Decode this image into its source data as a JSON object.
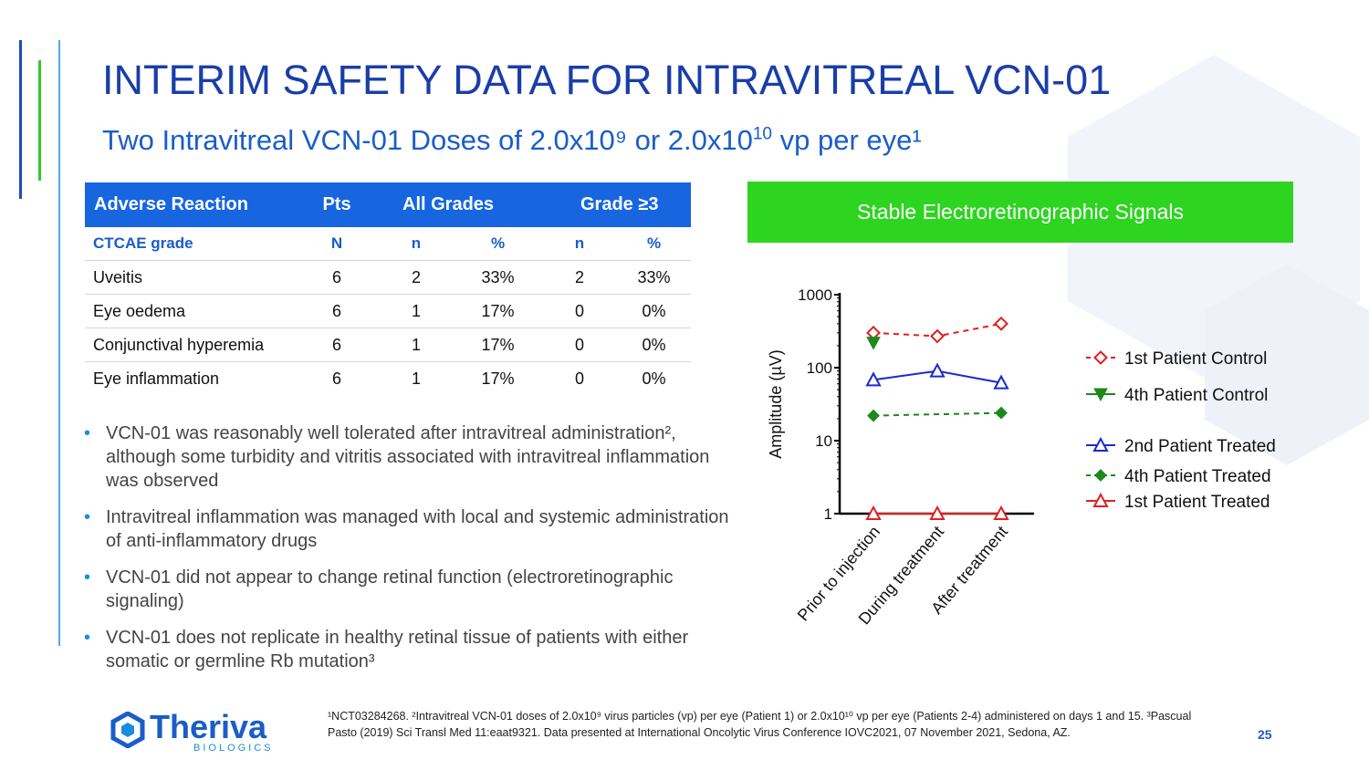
{
  "title": "INTERIM SAFETY DATA FOR INTRAVITREAL VCN-01",
  "subtitle": {
    "prefix": "Two Intravitreal VCN-01 Doses of 2.0x10",
    "exp1": "⁹",
    "middle": " or 2.0x10",
    "exp2": "10",
    "suffix": " vp per eye¹"
  },
  "table": {
    "headers": [
      "Adverse Reaction",
      "Pts",
      "All Grades",
      "Grade ≥3"
    ],
    "subheader": [
      "CTCAE grade",
      "N",
      "n",
      "%",
      "n",
      "%"
    ],
    "rows": [
      [
        "Uveitis",
        "6",
        "2",
        "33%",
        "2",
        "33%"
      ],
      [
        "Eye oedema",
        "6",
        "1",
        "17%",
        "0",
        "0%"
      ],
      [
        "Conjunctival hyperemia",
        "6",
        "1",
        "17%",
        "0",
        "0%"
      ],
      [
        "Eye inflammation",
        "6",
        "1",
        "17%",
        "0",
        "0%"
      ]
    ]
  },
  "bullets": [
    "VCN-01 was reasonably well tolerated after intravitreal administration², although some turbidity and vitritis associated with intravitreal inflammation was observed",
    "Intravitreal inflammation was managed with local and systemic administration of anti-inflammatory drugs",
    "VCN-01 did not appear to change retinal function (electroretinographic signaling)",
    "VCN-01 does not replicate in healthy retinal tissue of patients with either somatic or germline Rb mutation³"
  ],
  "banner": "Stable Electroretinographic Signals",
  "chart_data": {
    "type": "line",
    "categories": [
      "Prior to injection",
      "During treatment",
      "After treatment"
    ],
    "ylabel": "Amplitude (µV)",
    "yscale": "log",
    "ylim": [
      1,
      1000
    ],
    "yticks": [
      "1",
      "10",
      "100",
      "1000"
    ],
    "series": [
      {
        "name": "1st Patient Control",
        "values": [
          300,
          270,
          400
        ],
        "color": "#e02020",
        "marker": "diamond-open",
        "dash": true
      },
      {
        "name": "4th Patient Control",
        "values": [
          220,
          null,
          null
        ],
        "color": "#1a8a1a",
        "marker": "triangle-down-filled",
        "dash": false
      },
      {
        "name": "2nd Patient Treated",
        "values": [
          68,
          90,
          62
        ],
        "color": "#1a2ad0",
        "marker": "triangle-open",
        "dash": false
      },
      {
        "name": "4th Patient Treated",
        "values": [
          22,
          null,
          24
        ],
        "color": "#1a8a1a",
        "marker": "diamond-filled",
        "dash": true
      },
      {
        "name": "1st Patient Treated",
        "values": [
          1,
          1,
          1
        ],
        "color": "#e02020",
        "marker": "triangle-open",
        "dash": false
      }
    ],
    "legend_position": "right"
  },
  "footnote": "¹NCT03284268. ²Intravitreal VCN-01 doses of 2.0x10⁹ virus particles (vp) per eye (Patient 1) or 2.0x10¹⁰ vp per eye (Patients 2-4) administered on days 1 and 15. ³Pascual Pasto (2019) Sci Transl Med 11:eaat9321. Data presented at International Oncolytic Virus Conference IOVC2021, 07 November 2021, Sedona, AZ.",
  "page_number": "25",
  "logo": {
    "name": "Theriva",
    "sub": "BIOLOGICS"
  },
  "colors": {
    "title": "#1a3ea8",
    "accent": "#1766e0",
    "banner": "#2dd420"
  }
}
